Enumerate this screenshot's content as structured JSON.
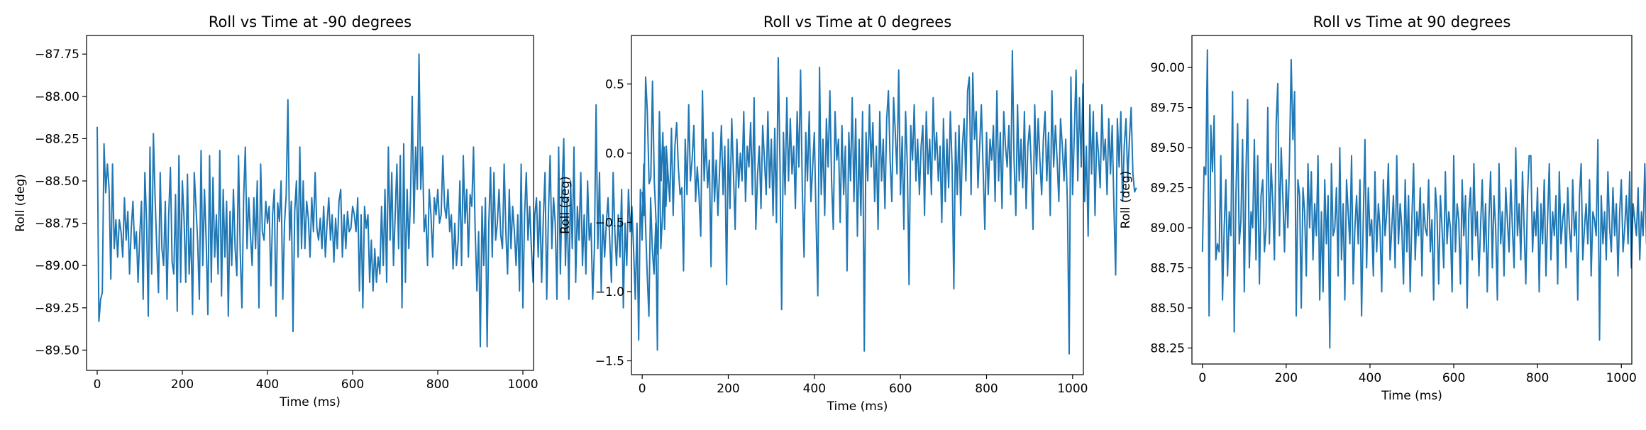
{
  "chart_data": [
    {
      "type": "line",
      "title": "Roll vs Time at -90 degrees",
      "xlabel": "Time (ms)",
      "ylabel": "Roll (deg)",
      "xlim": [
        -25,
        1025
      ],
      "ylim": [
        -89.62,
        -87.64
      ],
      "xticks": [
        0,
        200,
        400,
        600,
        800,
        1000
      ],
      "yticks": [
        -89.5,
        -89.25,
        -89.0,
        -88.75,
        -88.5,
        -88.25,
        -88.0,
        -87.75
      ],
      "ytick_labels": [
        "−89.50",
        "−89.25",
        "−89.00",
        "−88.75",
        "−88.50",
        "−88.25",
        "−88.00",
        "−87.75"
      ],
      "xtick_labels": [
        "0",
        "200",
        "400",
        "600",
        "800",
        "1000"
      ],
      "color": "#1f77b4",
      "grid": false,
      "x_start": 0,
      "x_step": 4,
      "values": [
        -88.18,
        -89.33,
        -89.2,
        -89.16,
        -88.28,
        -88.57,
        -88.4,
        -88.55,
        -89.08,
        -88.4,
        -88.9,
        -88.73,
        -88.95,
        -88.73,
        -88.8,
        -88.95,
        -88.6,
        -88.85,
        -88.68,
        -89.05,
        -88.78,
        -88.62,
        -88.9,
        -88.8,
        -89.1,
        -88.82,
        -88.62,
        -89.2,
        -88.45,
        -88.74,
        -89.3,
        -88.3,
        -89.05,
        -88.22,
        -88.6,
        -88.9,
        -89.16,
        -88.45,
        -88.9,
        -89.0,
        -88.62,
        -89.2,
        -88.7,
        -88.42,
        -88.98,
        -89.05,
        -88.58,
        -89.27,
        -88.35,
        -89.1,
        -88.5,
        -88.72,
        -89.1,
        -88.46,
        -89.05,
        -88.78,
        -89.29,
        -88.45,
        -88.65,
        -88.86,
        -89.2,
        -88.32,
        -89.0,
        -88.55,
        -88.85,
        -89.29,
        -88.35,
        -89.1,
        -88.48,
        -88.95,
        -88.7,
        -89.05,
        -88.32,
        -89.18,
        -88.55,
        -88.95,
        -88.62,
        -89.3,
        -88.68,
        -89.0,
        -88.55,
        -88.9,
        -89.06,
        -88.35,
        -88.92,
        -89.25,
        -88.6,
        -88.3,
        -88.9,
        -88.6,
        -88.82,
        -89.0,
        -88.6,
        -88.9,
        -88.5,
        -89.25,
        -88.4,
        -88.8,
        -88.85,
        -88.62,
        -88.75,
        -88.65,
        -89.12,
        -88.7,
        -88.55,
        -89.3,
        -88.63,
        -88.74,
        -88.5,
        -89.2,
        -88.75,
        -88.58,
        -88.02,
        -88.85,
        -88.62,
        -89.39,
        -88.68,
        -88.5,
        -88.95,
        -88.3,
        -88.9,
        -88.5,
        -88.9,
        -88.62,
        -88.72,
        -88.95,
        -88.6,
        -88.8,
        -88.45,
        -88.78,
        -88.85,
        -88.72,
        -88.9,
        -88.65,
        -88.95,
        -88.75,
        -88.6,
        -88.85,
        -88.7,
        -88.98,
        -88.72,
        -88.9,
        -88.62,
        -88.55,
        -88.95,
        -88.7,
        -88.9,
        -88.68,
        -88.8,
        -88.78,
        -88.65,
        -88.7,
        -88.8,
        -88.6,
        -89.15,
        -88.7,
        -89.25,
        -88.65,
        -88.78,
        -88.7,
        -89.1,
        -88.85,
        -89.15,
        -88.9,
        -89.1,
        -88.95,
        -89.05,
        -88.65,
        -89.0,
        -88.55,
        -89.1,
        -88.3,
        -88.85,
        -88.45,
        -89.0,
        -88.7,
        -88.4,
        -88.9,
        -88.35,
        -89.25,
        -88.28,
        -89.1,
        -88.55,
        -88.9,
        -88.6,
        -88.0,
        -88.75,
        -88.3,
        -88.55,
        -87.75,
        -88.55,
        -88.3,
        -88.8,
        -88.7,
        -89.0,
        -88.55,
        -88.7,
        -88.95,
        -88.6,
        -88.7,
        -88.55,
        -88.75,
        -88.7,
        -88.35,
        -88.65,
        -88.72,
        -88.55,
        -88.8,
        -88.7,
        -89.02,
        -88.75,
        -89.0,
        -88.85,
        -88.5,
        -89.0,
        -88.35,
        -88.75,
        -88.55,
        -88.95,
        -88.58,
        -88.65,
        -88.3,
        -88.8,
        -89.15,
        -88.8,
        -89.48,
        -88.65,
        -89.0,
        -88.6,
        -89.48,
        -88.75,
        -88.42,
        -88.95,
        -88.45,
        -88.85,
        -88.75,
        -88.55,
        -88.82,
        -88.9,
        -88.4,
        -88.8,
        -89.05,
        -88.55,
        -88.9,
        -88.65,
        -88.8,
        -89.0,
        -88.7,
        -89.15,
        -88.4,
        -89.25,
        -88.7,
        -88.45,
        -88.85,
        -88.65,
        -88.9,
        -89.1,
        -88.7,
        -88.6,
        -88.95,
        -88.62,
        -89.1,
        -88.72,
        -88.45,
        -89.2,
        -88.7,
        -88.35,
        -88.9,
        -88.6,
        -88.75,
        -89.2,
        -88.3,
        -89.05,
        -88.55,
        -88.25,
        -89.0,
        -88.6,
        -89.2,
        -88.5,
        -88.9,
        -88.3,
        -89.1,
        -88.65,
        -88.85,
        -88.45,
        -89.0,
        -88.7,
        -89.05,
        -88.5,
        -88.85,
        -88.75,
        -89.2,
        -88.9,
        -88.05,
        -88.9,
        -88.45,
        -89.15,
        -88.7,
        -88.95,
        -88.75,
        -88.6,
        -88.85,
        -89.1,
        -88.45,
        -88.8,
        -89.0,
        -88.7,
        -88.95,
        -88.55,
        -89.25,
        -88.75,
        -89.0,
        -88.55,
        -88.8,
        -88.65,
        -88.9,
        -89.2,
        -88.75,
        -89.44,
        -88.55,
        -88.85,
        -88.4,
        -88.75,
        -89.05,
        -89.3,
        -88.6,
        -88.9,
        -89.05,
        -88.75,
        -89.5,
        -88.2,
        -88.9,
        -88.7,
        -88.3,
        -88.65,
        -88.4
      ]
    },
    {
      "type": "line",
      "title": "Roll vs Time at 0 degrees",
      "xlabel": "Time (ms)",
      "ylabel": "Roll (deg)",
      "xlim": [
        -25,
        1025
      ],
      "ylim": [
        -1.6,
        0.85
      ],
      "xticks": [
        0,
        200,
        400,
        600,
        800,
        1000
      ],
      "yticks": [
        -1.5,
        -1.0,
        -0.5,
        0.0,
        0.5
      ],
      "ytick_labels": [
        "−1.5",
        "−1.0",
        "−0.5",
        "0.0",
        "0.5"
      ],
      "xtick_labels": [
        "0",
        "200",
        "400",
        "600",
        "800",
        "1000"
      ],
      "color": "#1f77b4",
      "grid": false,
      "x_start": 0,
      "x_step": 4,
      "values": [
        -0.28,
        -0.45,
        0.55,
        0.3,
        -0.22,
        -0.18,
        0.52,
        -0.2,
        -0.48,
        -0.73,
        0.3,
        -0.2,
        0.15,
        -0.55,
        0.05,
        -0.15,
        -0.35,
        0.18,
        -0.45,
        0.05,
        0.22,
        -0.1,
        -0.3,
        -0.25,
        -0.85,
        0.1,
        -0.3,
        0.35,
        -0.2,
        -0.05,
        0.2,
        -0.35,
        -0.1,
        -0.3,
        -0.6,
        0.45,
        -0.2,
        0.1,
        -0.25,
        -0.05,
        -0.82,
        0.15,
        -0.35,
        -0.05,
        -0.45,
        -0.1,
        0.2,
        -0.3,
        0.05,
        -0.95,
        0.1,
        -0.4,
        0.25,
        -0.15,
        -0.55,
        0.1,
        -0.25,
        0.0,
        -0.2,
        0.3,
        -0.35,
        0.05,
        -0.1,
        0.22,
        -0.3,
        0.4,
        -0.55,
        -0.15,
        0.05,
        -0.4,
        0.2,
        -0.05,
        -0.3,
        0.3,
        -0.25,
        0.1,
        -0.45,
        0.18,
        -0.5,
        0.69,
        -0.05,
        -1.13,
        0.15,
        -0.3,
        0.4,
        -0.2,
        0.25,
        -0.15,
        0.05,
        -0.4,
        0.3,
        -0.1,
        0.6,
        -0.25,
        -0.75,
        0.15,
        -0.2,
        0.3,
        -0.35,
        -0.1,
        0.15,
        -0.5,
        -1.03,
        0.62,
        -0.3,
        0.1,
        -0.45,
        0.25,
        -0.1,
        0.45,
        -0.2,
        -0.55,
        0.3,
        -0.05,
        0.1,
        -0.5,
        0.2,
        -0.3,
        0.05,
        -0.85,
        0.15,
        -0.2,
        0.4,
        -0.35,
        0.25,
        -0.6,
        0.1,
        -0.45,
        0.3,
        -1.43,
        0.15,
        -0.2,
        0.35,
        -0.1,
        0.22,
        -0.35,
        0.05,
        -0.55,
        0.3,
        -0.2,
        0.1,
        -0.4,
        0.25,
        0.45,
        -0.05,
        -0.35,
        0.4,
        0.15,
        -0.15,
        0.6,
        -0.3,
        0.12,
        -0.55,
        0.3,
        -0.1,
        -0.95,
        0.2,
        -0.05,
        0.35,
        -0.2,
        0.1,
        -0.3,
        0.05,
        0.2,
        -0.45,
        0.3,
        -0.15,
        0.1,
        -0.3,
        0.4,
        -0.05,
        0.15,
        -0.2,
        0.05,
        -0.5,
        0.25,
        -0.35,
        0.1,
        -0.25,
        0.3,
        -0.1,
        -0.98,
        0.15,
        -0.3,
        0.2,
        -0.45,
        0.05,
        0.25,
        -0.2,
        0.45,
        0.55,
        -0.3,
        0.58,
        0.1,
        0.3,
        -0.25,
        0.05,
        0.35,
        -0.1,
        -0.55,
        0.15,
        -0.3,
        0.1,
        -0.05,
        0.2,
        -0.35,
        0.45,
        -0.2,
        0.15,
        -0.4,
        0.3,
        0.05,
        -0.1,
        0.2,
        -0.3,
        0.74,
        -0.05,
        -0.45,
        0.35,
        -0.2,
        0.1,
        -0.25,
        0.3,
        -0.4,
        0.05,
        0.2,
        -0.1,
        -0.55,
        0.35,
        -0.15,
        0.25,
        -0.05,
        -0.3,
        0.1,
        0.3,
        -0.2,
        0.15,
        -0.45,
        0.45,
        -0.1,
        0.2,
        -0.05,
        -0.35,
        0.25,
        0.05,
        -0.2,
        0.1,
        -0.4,
        -1.45,
        0.55,
        -0.3,
        0.15,
        0.6,
        -0.2,
        0.4,
        -0.1,
        0.5,
        -0.35,
        0.05,
        -0.6,
        0.35,
        -0.15,
        0.3,
        -0.45,
        0.15,
        0.0,
        -0.25,
        0.35,
        -0.05,
        0.1,
        -0.3,
        0.25,
        -0.15,
        0.2,
        -0.4,
        -0.88,
        0.25,
        -0.1,
        0.3,
        -0.35,
        0.05,
        0.25,
        -0.2,
        0.1,
        0.33,
        -0.15,
        -0.28,
        -0.25
      ]
    },
    {
      "type": "line",
      "title": "Roll vs Time at 90 degrees",
      "xlabel": "Time (ms)",
      "ylabel": "Roll (deg)",
      "xlim": [
        -25,
        1025
      ],
      "ylim": [
        88.15,
        90.2
      ],
      "xticks": [
        0,
        200,
        400,
        600,
        800,
        1000
      ],
      "yticks": [
        88.25,
        88.5,
        88.75,
        89.0,
        89.25,
        89.5,
        89.75,
        90.0
      ],
      "ytick_labels": [
        "88.25",
        "88.50",
        "88.75",
        "89.00",
        "89.25",
        "89.50",
        "89.75",
        "90.00"
      ],
      "xtick_labels": [
        "0",
        "200",
        "400",
        "600",
        "800",
        "1000"
      ],
      "color": "#1f77b4",
      "grid": false,
      "x_start": 0,
      "x_step": 4,
      "values": [
        88.85,
        89.38,
        89.33,
        90.11,
        88.45,
        89.64,
        89.35,
        89.7,
        88.8,
        88.9,
        88.85,
        89.45,
        88.55,
        89.0,
        89.3,
        88.7,
        89.1,
        88.95,
        89.85,
        88.35,
        89.2,
        89.65,
        88.9,
        89.05,
        89.55,
        88.6,
        89.35,
        89.8,
        88.75,
        89.1,
        89.0,
        89.55,
        88.8,
        89.45,
        88.65,
        89.2,
        89.3,
        88.85,
        89.0,
        89.75,
        88.9,
        89.4,
        89.15,
        88.8,
        89.65,
        89.9,
        88.95,
        89.5,
        89.2,
        88.85,
        89.3,
        89.0,
        89.45,
        90.05,
        89.55,
        89.85,
        88.45,
        89.3,
        89.2,
        88.5,
        89.25,
        89.1,
        88.7,
        89.4,
        89.0,
        89.35,
        88.8,
        89.15,
        88.95,
        89.45,
        88.55,
        89.1,
        88.6,
        89.3,
        88.9,
        89.2,
        88.25,
        89.4,
        88.95,
        89.0,
        89.25,
        88.7,
        89.5,
        88.8,
        89.15,
        88.55,
        89.3,
        89.1,
        88.9,
        89.45,
        88.65,
        89.0,
        89.2,
        88.9,
        89.3,
        88.45,
        89.05,
        89.55,
        88.75,
        89.25,
        88.95,
        89.05,
        88.7,
        89.35,
        88.85,
        89.15,
        89.0,
        88.6,
        89.3,
        88.95,
        89.1,
        89.4,
        88.8,
        89.0,
        89.2,
        88.75,
        89.45,
        88.9,
        89.15,
        89.0,
        88.65,
        89.3,
        88.85,
        89.2,
        88.6,
        89.05,
        89.4,
        88.8,
        89.1,
        88.95,
        89.25,
        88.7,
        89.15,
        89.0,
        88.95,
        89.3,
        88.85,
        89.05,
        88.55,
        89.25,
        89.1,
        88.65,
        89.2,
        89.0,
        88.75,
        89.35,
        88.9,
        89.1,
        89.0,
        88.6,
        89.45,
        88.85,
        89.15,
        89.05,
        88.65,
        89.3,
        88.95,
        89.2,
        88.5,
        89.1,
        89.25,
        88.8,
        89.4,
        88.95,
        89.1,
        88.7,
        89.0,
        89.3,
        88.85,
        89.15,
        88.6,
        89.05,
        89.35,
        88.75,
        89.2,
        89.0,
        88.55,
        89.4,
        88.9,
        89.1,
        88.7,
        89.25,
        89.05,
        88.85,
        89.3,
        89.0,
        88.75,
        89.5,
        88.95,
        89.15,
        88.8,
        89.35,
        89.0,
        88.65,
        89.2,
        89.45,
        89.45,
        88.85,
        89.1,
        88.95,
        89.25,
        88.6,
        89.15,
        88.9,
        89.3,
        88.7,
        89.05,
        89.4,
        88.8,
        89.1,
        88.95,
        89.2,
        88.65,
        89.35,
        88.9,
        89.05,
        89.15,
        88.75,
        89.25,
        89.0,
        88.85,
        89.3,
        88.95,
        89.1,
        88.55,
        89.2,
        89.4,
        88.8,
        89.0,
        89.15,
        88.9,
        89.3,
        88.7,
        89.1,
        89.05,
        88.95,
        89.55,
        88.3,
        89.2,
        88.9,
        89.1,
        88.8,
        89.35,
        89.0,
        88.85,
        89.25,
        88.95,
        89.15,
        88.7,
        89.1,
        89.3,
        88.85,
        89.0,
        89.2,
        88.9,
        89.35,
        88.75,
        89.15,
        89.05,
        88.95,
        89.25,
        88.8,
        89.1,
        88.95,
        89.4,
        88.9,
        89.5,
        89.3,
        90.0,
        89.15,
        88.9,
        89.2,
        88.4,
        89.25,
        89.0,
        89.1,
        88.85,
        89.3,
        88.95,
        88.97,
        89.15,
        88.8,
        89.38,
        89.15,
        89.35,
        89.2,
        88.24
      ]
    }
  ]
}
